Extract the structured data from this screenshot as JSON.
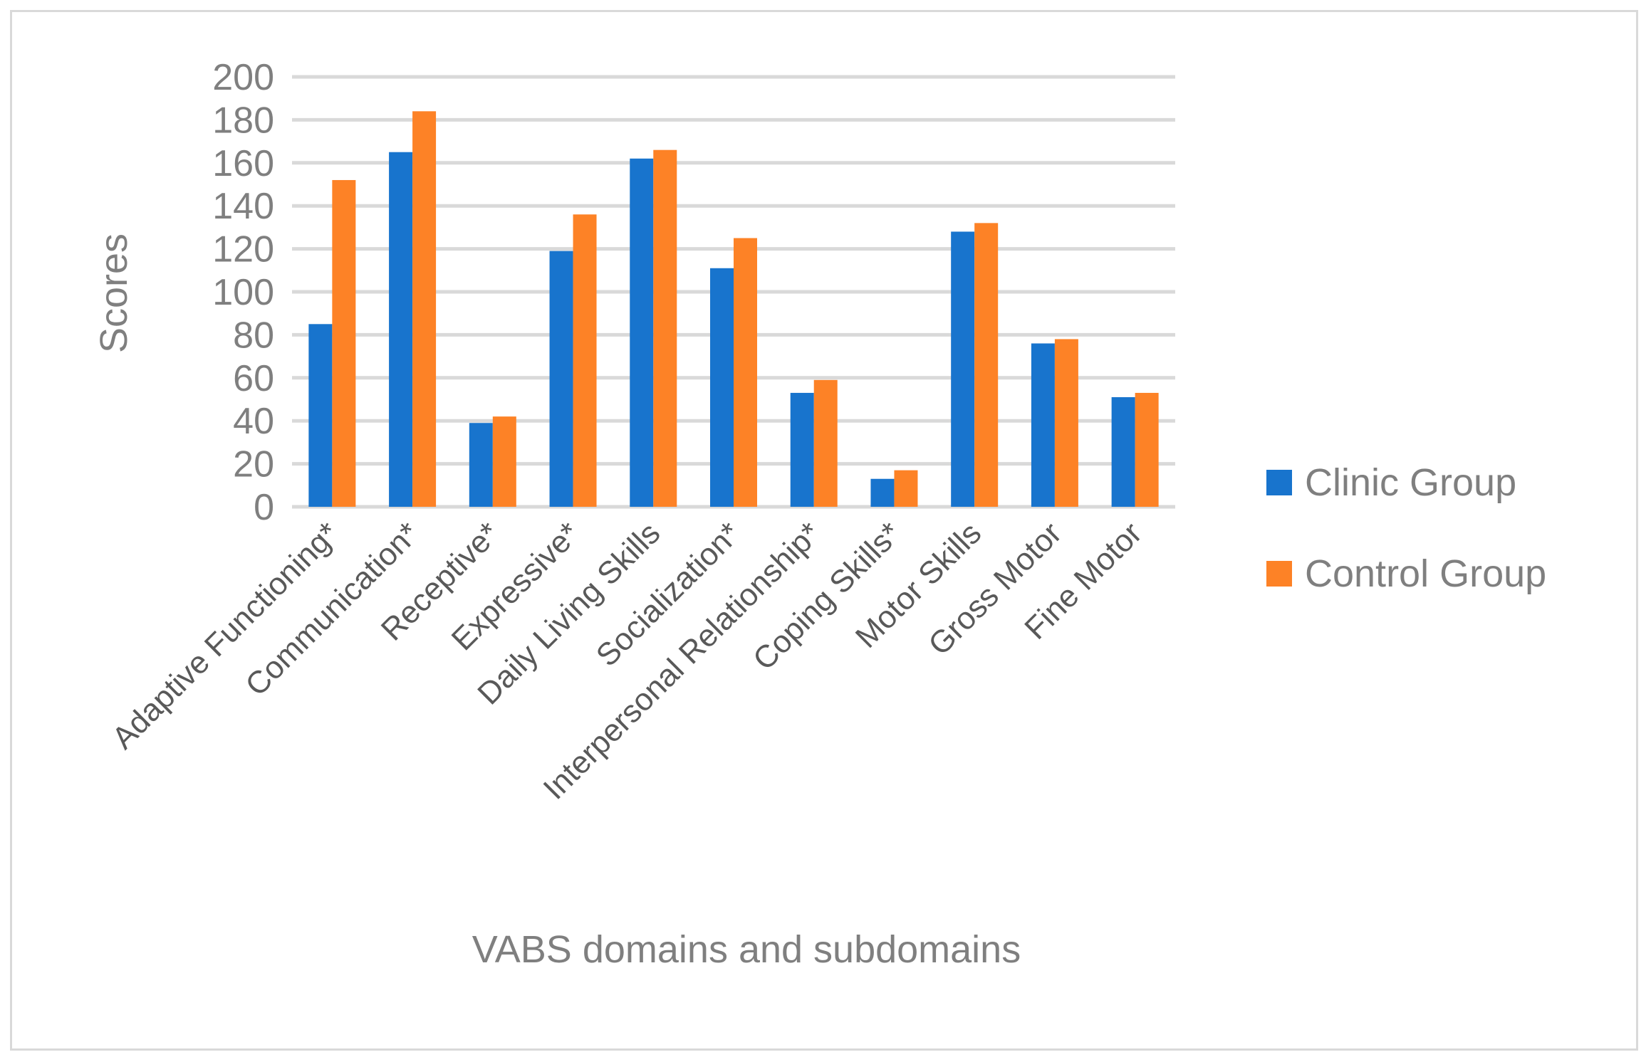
{
  "chart_data": {
    "type": "bar",
    "title": "",
    "xlabel": "VABS domains and subdomains",
    "ylabel": "Scores",
    "ylim": [
      0,
      200
    ],
    "yticks": [
      0,
      20,
      40,
      60,
      80,
      100,
      120,
      140,
      160,
      180,
      200
    ],
    "grid": true,
    "legend_position": "right",
    "categories": [
      "Adaptive Functioning*",
      "Communication*",
      "Receptive*",
      "Expressive*",
      "Daily Living Skills",
      "Socialization*",
      "Interpersonal Relationship*",
      "Coping Skills*",
      "Motor Skills",
      "Gross Motor",
      "Fine Motor"
    ],
    "series": [
      {
        "name": "Clinic Group",
        "color": "#1874cd",
        "values": [
          85,
          165,
          39,
          119,
          162,
          111,
          53,
          13,
          128,
          76,
          51
        ]
      },
      {
        "name": "Control Group",
        "color": "#fd8226",
        "values": [
          152,
          184,
          42,
          136,
          166,
          125,
          59,
          17,
          132,
          78,
          53
        ]
      }
    ]
  }
}
